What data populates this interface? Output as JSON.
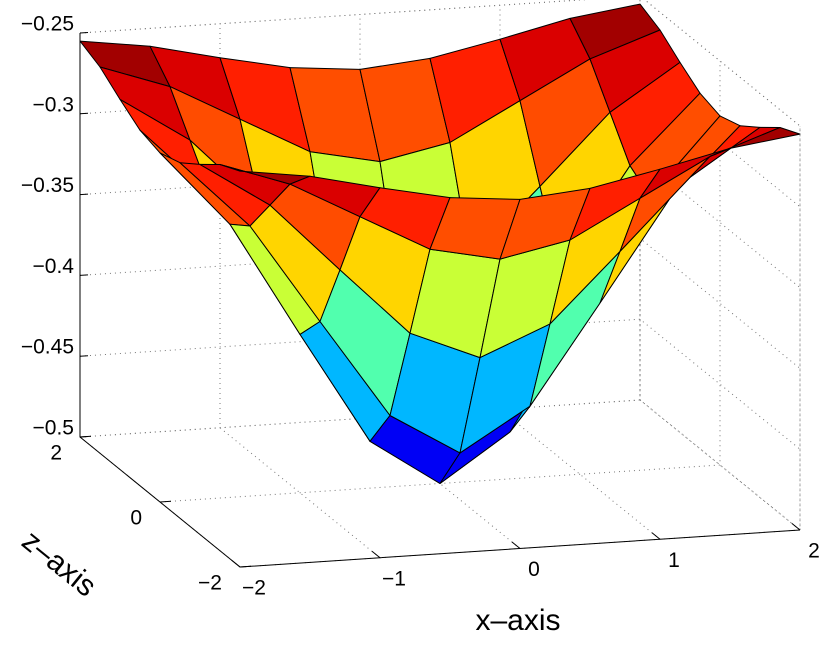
{
  "chart_data": {
    "type": "surface",
    "xlabel": "x–axis",
    "ylabel": "z–axis",
    "colormap": "jet",
    "grid": true,
    "x": [
      -2,
      -1.5,
      -1,
      -0.5,
      0,
      0.5,
      1,
      1.5,
      2
    ],
    "y": [
      -2,
      -1.5,
      -1,
      -0.5,
      0,
      0.5,
      1,
      1.5,
      2
    ],
    "z": [
      [
        -0.255,
        -0.261,
        -0.271,
        -0.28,
        -0.284,
        -0.28,
        -0.271,
        -0.261,
        -0.255
      ],
      [
        -0.261,
        -0.276,
        -0.299,
        -0.322,
        -0.331,
        -0.322,
        -0.299,
        -0.276,
        -0.261
      ],
      [
        -0.271,
        -0.299,
        -0.342,
        -0.384,
        -0.402,
        -0.384,
        -0.342,
        -0.299,
        -0.271
      ],
      [
        -0.28,
        -0.322,
        -0.384,
        -0.445,
        -0.471,
        -0.445,
        -0.384,
        -0.322,
        -0.28
      ],
      [
        -0.284,
        -0.331,
        -0.402,
        -0.471,
        -0.5,
        -0.471,
        -0.402,
        -0.331,
        -0.284
      ],
      [
        -0.28,
        -0.322,
        -0.384,
        -0.445,
        -0.471,
        -0.445,
        -0.384,
        -0.322,
        -0.28
      ],
      [
        -0.271,
        -0.299,
        -0.342,
        -0.384,
        -0.402,
        -0.384,
        -0.342,
        -0.299,
        -0.271
      ],
      [
        -0.261,
        -0.276,
        -0.299,
        -0.322,
        -0.331,
        -0.322,
        -0.299,
        -0.276,
        -0.261
      ],
      [
        -0.255,
        -0.261,
        -0.271,
        -0.28,
        -0.284,
        -0.28,
        -0.271,
        -0.261,
        -0.255
      ]
    ],
    "xlim": [
      -2,
      2
    ],
    "ylim": [
      -2,
      2
    ],
    "zlim": [
      -0.5,
      -0.25
    ],
    "xticks": [
      {
        "value": -2,
        "label": "−2"
      },
      {
        "value": -1,
        "label": "−1"
      },
      0,
      1,
      2
    ],
    "yticks": [
      {
        "value": -2,
        "label": "−2"
      },
      0,
      2
    ],
    "zticks": [
      {
        "value": -0.5,
        "label": "−0.5"
      },
      {
        "value": -0.45,
        "label": "−0.45"
      },
      {
        "value": -0.4,
        "label": "−0.4"
      },
      {
        "value": -0.35,
        "label": "−0.35"
      },
      {
        "value": -0.3,
        "label": "−0.3"
      },
      {
        "value": -0.25,
        "label": "−0.25"
      }
    ]
  }
}
